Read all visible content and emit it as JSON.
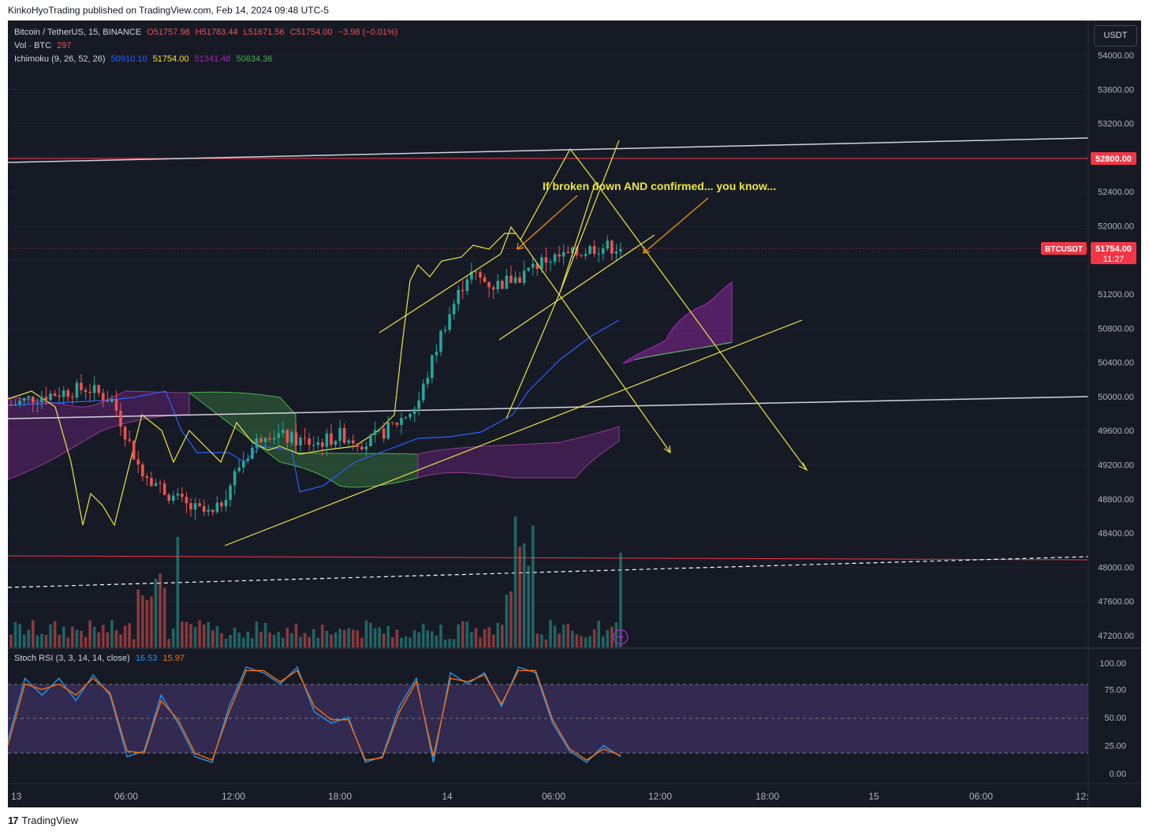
{
  "header": {
    "attribution": "KinkoHyoTrading published on TradingView.com, Feb 14, 2024 09:48 UTC-5"
  },
  "footer": {
    "logo_mark": "17",
    "brand": "TradingView"
  },
  "legend": {
    "symbol": "Bitcoin / TetherUS, 15, BINANCE",
    "ohlc": {
      "o": "O51757.98",
      "h": "H51783.44",
      "l": "L51671.56",
      "c": "C51754.00",
      "chg": "−3.98 (−0.01%)"
    },
    "volume": {
      "label": "Vol · BTC",
      "value": "297"
    },
    "ichimoku": {
      "label": "Ichimoku (9, 26, 52, 26)",
      "v1": "50910.10",
      "v2": "51754.00",
      "v3": "51341.48",
      "v4": "50634.36"
    },
    "stoch": {
      "label": "Stoch RSI (3, 3, 14, 14, close)",
      "k": "16.53",
      "d": "15.97"
    }
  },
  "currency_button": "USDT",
  "annotation": "If broken down AND confirmed... you know...",
  "price_tags": {
    "level": "52800.00",
    "symbol": "BTCUSDT",
    "last": "51754.00",
    "countdown": "11:27"
  },
  "colors": {
    "background": "#161a25",
    "up": "#26a69a",
    "down": "#ef5350",
    "yellow": "#f0e442",
    "orange": "#ff9800",
    "kijun": "#2962ff",
    "cloud_bull": "#4caf50",
    "cloud_bear": "#9c27b0",
    "stoch_k": "#2196f3",
    "stoch_d": "#ff6d00"
  },
  "chart_data": [
    {
      "type": "line",
      "subtype": "candlestick",
      "symbol": "BTCUSDT",
      "ylim": [
        47000,
        54200
      ],
      "y_ticks": [
        "54000.00",
        "53600.00",
        "53200.00",
        "52800.00",
        "52400.00",
        "52000.00",
        "51600.00",
        "51200.00",
        "50800.00",
        "50400.00",
        "50000.00",
        "49600.00",
        "49200.00",
        "48800.00",
        "48400.00",
        "48000.00",
        "47600.00",
        "47200.00"
      ],
      "x_ticks": [
        "13",
        "06:00",
        "12:00",
        "18:00",
        "14",
        "06:00",
        "12:00",
        "18:00",
        "15",
        "06:00",
        "12:"
      ],
      "series": [
        {
          "name": "Price",
          "x": [
            "13 00:00",
            "13 02:00",
            "13 04:00",
            "13 06:00",
            "13 08:00",
            "13 09:00",
            "13 10:00",
            "13 11:00",
            "13 12:00",
            "13 14:00",
            "13 16:00",
            "13 18:00",
            "13 20:00",
            "13 22:00",
            "14 00:00",
            "14 02:00",
            "14 03:00",
            "14 03:30",
            "14 04:00",
            "14 05:00",
            "14 06:00",
            "14 07:00",
            "14 08:00",
            "14 09:00",
            "14 09:45"
          ],
          "values": [
            49900,
            50000,
            50050,
            50100,
            49950,
            49200,
            48900,
            48700,
            48600,
            49200,
            49600,
            49500,
            49450,
            49550,
            49450,
            49650,
            49900,
            50800,
            51450,
            51300,
            51400,
            51600,
            51650,
            51750,
            51754
          ]
        },
        {
          "name": "Ichimoku 50910.10",
          "values": []
        },
        {
          "name": "Ichimoku 51754.00",
          "values": []
        },
        {
          "name": "Ichimoku 51341.48",
          "values": []
        },
        {
          "name": "Ichimoku 50634.36",
          "values": []
        }
      ],
      "levels": [
        52800,
        48100
      ],
      "last_price": 51754.0
    },
    {
      "type": "bar",
      "title": "Vol · BTC",
      "series": [
        {
          "name": "Volume",
          "values": [
            297
          ]
        }
      ]
    },
    {
      "type": "line",
      "title": "Stoch RSI (3, 3, 14, 14, close)",
      "ylim": [
        0,
        100
      ],
      "y_ticks": [
        "100.00",
        "75.00",
        "50.00",
        "25.00",
        "0.00"
      ],
      "bands": [
        20,
        80
      ],
      "series": [
        {
          "name": "16.53",
          "values": [
            30,
            85,
            70,
            85,
            65,
            88,
            70,
            15,
            20,
            70,
            45,
            15,
            10,
            60,
            95,
            90,
            80,
            95,
            55,
            45,
            50,
            10,
            15,
            60,
            85,
            10,
            90,
            80,
            90,
            60,
            95,
            90,
            45,
            20,
            10,
            25,
            15
          ]
        },
        {
          "name": "15.97",
          "values": [
            25,
            80,
            75,
            80,
            70,
            85,
            72,
            20,
            18,
            65,
            48,
            18,
            12,
            55,
            92,
            92,
            82,
            92,
            60,
            48,
            48,
            12,
            14,
            55,
            82,
            15,
            85,
            82,
            88,
            62,
            92,
            92,
            48,
            22,
            12,
            22,
            16
          ]
        }
      ]
    }
  ]
}
